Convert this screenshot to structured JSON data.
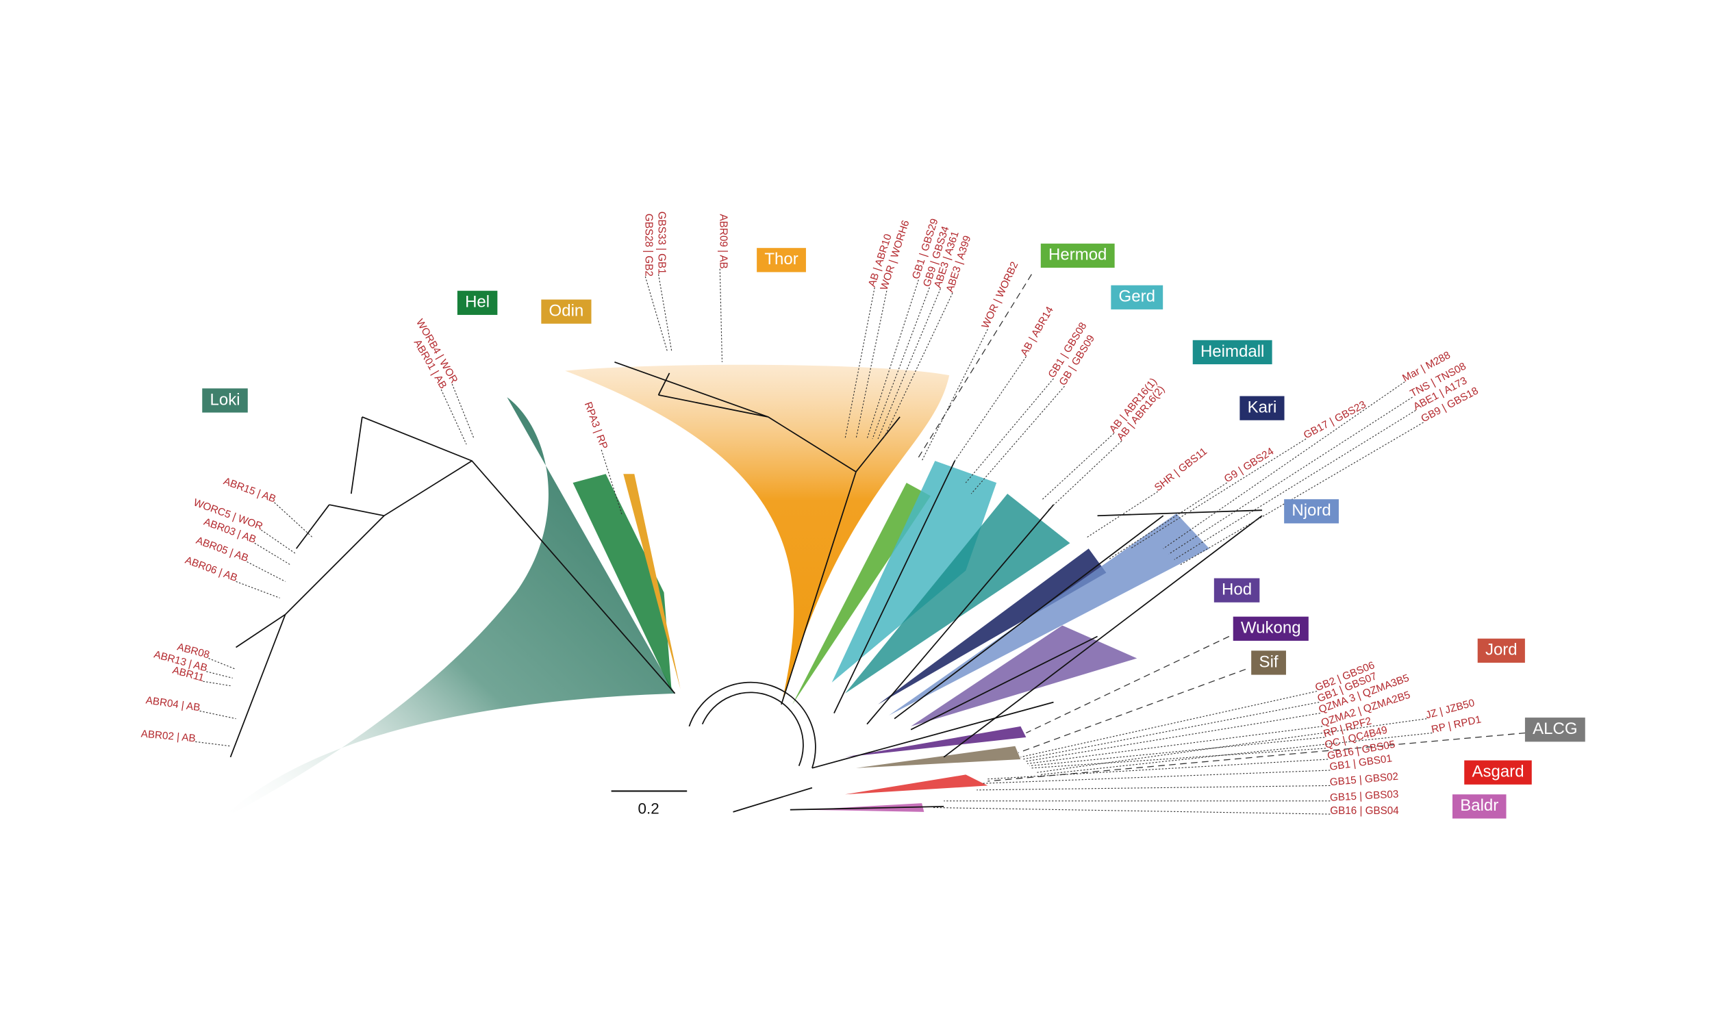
{
  "clades": [
    {
      "label": "Loki",
      "color": "#3f806c"
    },
    {
      "label": "Hel",
      "color": "#17803a"
    },
    {
      "label": "Odin",
      "color": "#d9a12b"
    },
    {
      "label": "Thor",
      "color": "#f2a122"
    },
    {
      "label": "Hermod",
      "color": "#5fb13b"
    },
    {
      "label": "Gerd",
      "color": "#4ab7c2"
    },
    {
      "label": "Heimdall",
      "color": "#1a8e8c"
    },
    {
      "label": "Kari",
      "color": "#242e6a"
    },
    {
      "label": "Njord",
      "color": "#6f8fc9"
    },
    {
      "label": "Hod",
      "color": "#5e3f95"
    },
    {
      "label": "Wukong",
      "color": "#5b2282"
    },
    {
      "label": "Sif",
      "color": "#7b6a50"
    },
    {
      "label": "Jord",
      "color": "#c9513f"
    },
    {
      "label": "ALCG",
      "color": "#7b7b7b"
    },
    {
      "label": "Asgard",
      "color": "#e0221f"
    },
    {
      "label": "Baldr",
      "color": "#c062b1"
    }
  ],
  "leaf_labels": [
    "ABR15 | AB",
    "WORC5 | WOR",
    "ABR03 | AB",
    "ABR05 | AB",
    "ABR06 | AB",
    "ABR08",
    "ABR13 | AB",
    "ABR11",
    "ABR04 | AB",
    "ABR02 | AB",
    "WORB4 | WOR",
    "ABR01 | AB",
    "RPA3 | RP",
    "GBS33 | GB1",
    "GBS28 | GB2",
    "ABR09 | AB",
    "AB | ABR10",
    "WOR | WORH6",
    "GB1 | GBS29",
    "GB9 | GBS34",
    "ABE3 | A361",
    "ABE3 | A399",
    "WOR | WORB2",
    "AB | ABR14",
    "GB1 | GBS08",
    "GB | GBS09",
    "AB | ABR16(1)",
    "AB | ABR16(2)",
    "SHR | GBS11",
    "G9 | GBS24",
    "GB17 | GBS23",
    "Mar | M288",
    "TNS | TNS08",
    "ABE1 | A173",
    "GB9 | GBS18",
    "GB2 | GBS06",
    "GB1 | GBS07",
    "QZMA 3 | QZMA3B5",
    "QZMA2 | QZMA2B5",
    "RP | RPF2",
    "QC | QC4B49",
    "JZ | JZB50",
    "RP | RPD1",
    "GB16 | GBS05",
    "GB1 | GBS01",
    "GB15 | GBS02",
    "GB15 | GBS03",
    "GB16 | GBS04"
  ],
  "scale_bar": {
    "label": "0.2"
  }
}
